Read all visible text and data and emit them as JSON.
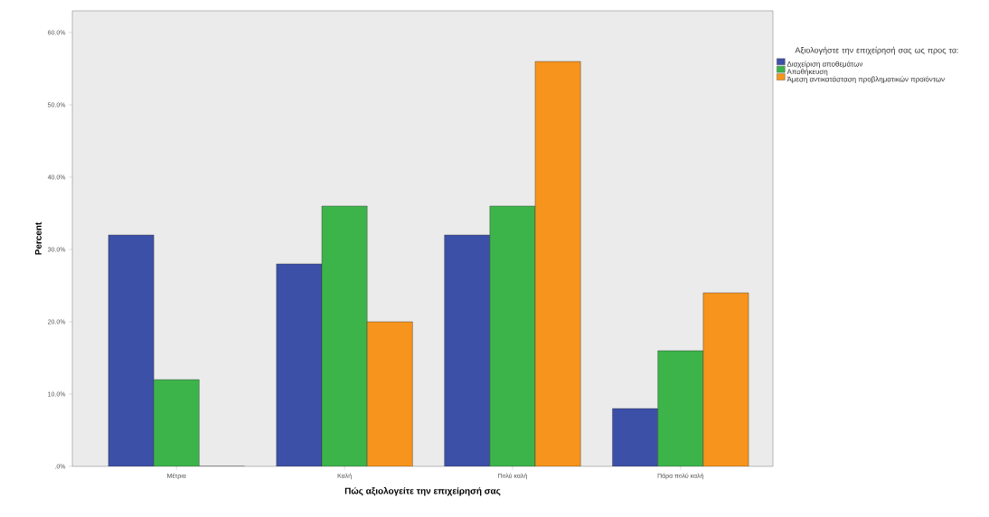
{
  "chart_data": {
    "type": "bar",
    "xlabel": "Πώς αξιολογείτε την επιχείρησή σας",
    "ylabel": "Percent",
    "legend_title": "Αξιολογήστε την επιχείρησή σας ως προς τα:",
    "categories": [
      "Μέτρια",
      "Καλή",
      "Πολύ καλή",
      "Πάρα πολύ καλή"
    ],
    "series": [
      {
        "name": "Διαχείριση αποθεμάτων",
        "color": "#3d50a8",
        "values": [
          32,
          28,
          32,
          8
        ]
      },
      {
        "name": "Αποθήκευση",
        "color": "#3cb44a",
        "values": [
          12,
          36,
          36,
          16
        ]
      },
      {
        "name": "Άμεση αντικατάσταση προβληματικών προϊόντων",
        "color": "#f7941d",
        "values": [
          0,
          20,
          56,
          24
        ]
      }
    ],
    "ylim": [
      0,
      63
    ],
    "yticks": [
      {
        "value": 0,
        "label": ".0%"
      },
      {
        "value": 10,
        "label": "10.0%"
      },
      {
        "value": 20,
        "label": "20.0%"
      },
      {
        "value": 30,
        "label": "30.0%"
      },
      {
        "value": 40,
        "label": "40.0%"
      },
      {
        "value": 50,
        "label": "50.0%"
      },
      {
        "value": 60,
        "label": "60.0%"
      }
    ],
    "legend": "right"
  }
}
